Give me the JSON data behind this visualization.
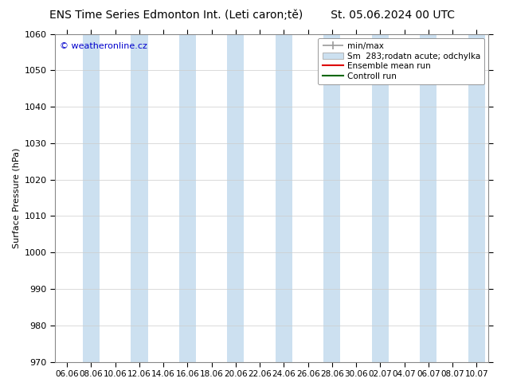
{
  "title": "ENS Time Series Edmonton Int. (Leti caron;tě)        St. 05.06.2024 00 UTC",
  "ylabel": "Surface Pressure (hPa)",
  "ylim": [
    970,
    1060
  ],
  "yticks": [
    970,
    980,
    990,
    1000,
    1010,
    1020,
    1030,
    1040,
    1050,
    1060
  ],
  "xtick_labels": [
    "06.06",
    "08.06",
    "10.06",
    "12.06",
    "14.06",
    "16.06",
    "18.06",
    "20.06",
    "22.06",
    "24.06",
    "26.06",
    "28.06",
    "30.06",
    "02.07",
    "04.07",
    "06.07",
    "08.07",
    "10.07"
  ],
  "band_color": "#cce0f0",
  "background_color": "#ffffff",
  "copyright_text": "© weatheronline.cz",
  "copyright_color": "#0000cc",
  "legend_labels": [
    "min/max",
    "Sm  283;rodatn acute; odchylka",
    "Ensemble mean run",
    "Controll run"
  ],
  "ensemble_color": "#dd0000",
  "control_color": "#006600",
  "minmax_color": "#999999",
  "std_color": "#cce0f0",
  "title_fontsize": 10,
  "label_fontsize": 8,
  "tick_fontsize": 8,
  "legend_fontsize": 7.5
}
